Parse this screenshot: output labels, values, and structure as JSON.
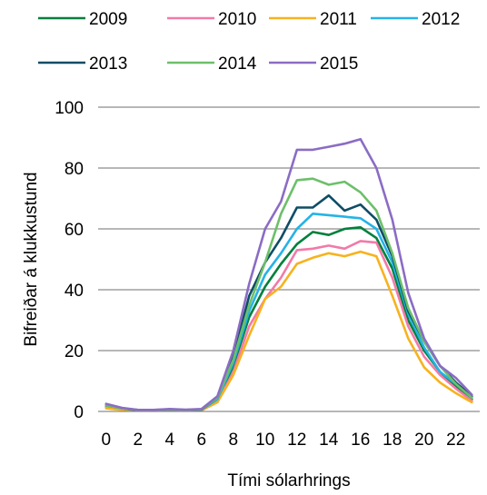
{
  "chart_data": {
    "type": "line",
    "xlabel": "Tími sólarhrings",
    "ylabel": "Bifreiðar á klukkustund",
    "ylim": [
      0,
      100
    ],
    "xlim": [
      0,
      23
    ],
    "x_ticks": [
      0,
      2,
      4,
      6,
      8,
      10,
      12,
      14,
      16,
      18,
      20,
      22
    ],
    "y_ticks": [
      0,
      20,
      40,
      60,
      80,
      100
    ],
    "grid": "horizontal",
    "legend_position": "top",
    "x": [
      0,
      1,
      2,
      3,
      4,
      5,
      6,
      7,
      8,
      9,
      10,
      11,
      12,
      13,
      14,
      15,
      16,
      17,
      18,
      19,
      20,
      21,
      22,
      23
    ],
    "series": [
      {
        "name": "2009",
        "color": "#00803c",
        "values": [
          1.5,
          0.8,
          0.4,
          0.3,
          0.5,
          0.4,
          0.5,
          3.5,
          15,
          31,
          41,
          48.5,
          55,
          59,
          58,
          60,
          60.5,
          57,
          47,
          30,
          20,
          13,
          8,
          4
        ]
      },
      {
        "name": "2010",
        "color": "#f27aa8",
        "values": [
          1.3,
          0.6,
          0.3,
          0.3,
          0.4,
          0.3,
          0.4,
          3,
          13,
          28,
          37,
          44,
          53,
          53.5,
          54.5,
          53.5,
          56,
          55.5,
          44,
          28,
          18,
          12,
          7.5,
          3.5
        ]
      },
      {
        "name": "2011",
        "color": "#f7b21e",
        "values": [
          1,
          0.5,
          0.3,
          0.2,
          0.3,
          0.3,
          0.4,
          3,
          12,
          25,
          37,
          41,
          48.5,
          50.5,
          52,
          51,
          52.5,
          51,
          38,
          24,
          14.5,
          9.5,
          6,
          3
        ]
      },
      {
        "name": "2012",
        "color": "#25b3e6",
        "values": [
          2,
          1,
          0.5,
          0.4,
          0.6,
          0.5,
          0.6,
          4,
          16,
          33,
          45,
          52,
          60,
          65,
          64.5,
          64,
          63.5,
          60,
          49,
          32,
          21,
          13,
          9,
          4.5
        ]
      },
      {
        "name": "2013",
        "color": "#0e4d66",
        "values": [
          2,
          1,
          0.4,
          0.5,
          0.6,
          0.5,
          0.6,
          4.5,
          18,
          38,
          49,
          57,
          67,
          67,
          71,
          66,
          68,
          63,
          51,
          33,
          23,
          15,
          9.5,
          5
        ]
      },
      {
        "name": "2014",
        "color": "#6dbf6a",
        "values": [
          2,
          1,
          0.5,
          0.5,
          0.6,
          0.5,
          0.7,
          4.5,
          17,
          35,
          49,
          65,
          76,
          76.5,
          74.5,
          75.5,
          72,
          66,
          52,
          34,
          23,
          15,
          9,
          4.5
        ]
      },
      {
        "name": "2015",
        "color": "#8b6cc4",
        "values": [
          2.5,
          1.2,
          0.5,
          0.5,
          0.8,
          0.6,
          0.8,
          5,
          20,
          42,
          60,
          69,
          86,
          86,
          87,
          88,
          89.5,
          80,
          63,
          39,
          24,
          15,
          11,
          5.5
        ]
      }
    ]
  }
}
